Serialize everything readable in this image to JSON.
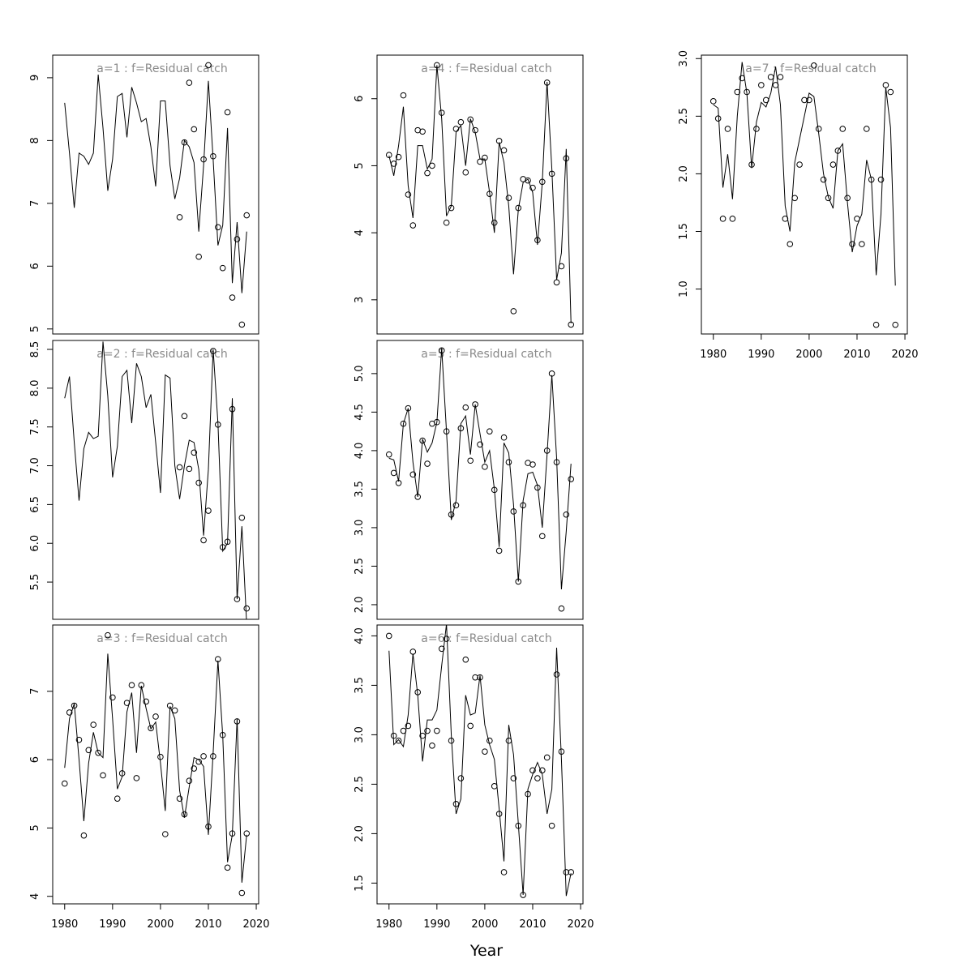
{
  "xlabel": "Year",
  "chart_data": [
    {
      "type": "line",
      "title": "a=1  :  f=Residual catch",
      "x": [
        1980,
        1981,
        1982,
        1983,
        1984,
        1985,
        1986,
        1987,
        1988,
        1989,
        1990,
        1991,
        1992,
        1993,
        1994,
        1995,
        1996,
        1997,
        1998,
        1999,
        2000,
        2001,
        2002,
        2003,
        2004,
        2005,
        2006,
        2007,
        2008,
        2009,
        2010,
        2011,
        2012,
        2013,
        2014,
        2015,
        2016,
        2017,
        2018
      ],
      "xlim": [
        1977.5,
        2020.5
      ],
      "ylim": [
        4.92,
        9.36
      ],
      "yticks": [
        5,
        6,
        7,
        8,
        9
      ],
      "series": [
        {
          "style": "line",
          "color": "#000000",
          "values": [
            8.6,
            7.8,
            6.93,
            7.8,
            7.75,
            7.62,
            7.8,
            9.05,
            8.2,
            7.2,
            7.7,
            8.7,
            8.75,
            8.05,
            8.85,
            8.6,
            8.3,
            8.35,
            7.9,
            7.27,
            8.63,
            8.63,
            7.6,
            7.07,
            7.4,
            8.0,
            7.9,
            7.65,
            6.55,
            7.6,
            8.95,
            7.7,
            6.33,
            6.65,
            8.2,
            5.73,
            6.7,
            5.57,
            6.55
          ]
        },
        {
          "style": "points",
          "color": "#000000",
          "values": [
            null,
            null,
            null,
            null,
            null,
            null,
            null,
            null,
            null,
            null,
            null,
            null,
            null,
            null,
            null,
            null,
            null,
            null,
            null,
            null,
            null,
            null,
            null,
            null,
            6.78,
            7.97,
            8.92,
            8.18,
            6.15,
            7.7,
            9.2,
            7.75,
            6.62,
            5.97,
            8.45,
            5.5,
            6.43,
            5.07,
            6.81
          ]
        }
      ]
    },
    {
      "type": "line",
      "title": "a=2  :  f=Residual catch",
      "x": [
        1980,
        1981,
        1982,
        1983,
        1984,
        1985,
        1986,
        1987,
        1988,
        1989,
        1990,
        1991,
        1992,
        1993,
        1994,
        1995,
        1996,
        1997,
        1998,
        1999,
        2000,
        2001,
        2002,
        2003,
        2004,
        2005,
        2006,
        2007,
        2008,
        2009,
        2010,
        2011,
        2012,
        2013,
        2014,
        2015,
        2016,
        2017,
        2018
      ],
      "xlim": [
        1977.5,
        2020.5
      ],
      "ylim": [
        5.02,
        8.615
      ],
      "yticks": [
        5.5,
        {
          "value": 6,
          "label": "6.0"
        },
        6.5,
        {
          "value": 7,
          "label": "7.0"
        },
        7.5,
        {
          "value": 8,
          "label": "8.0"
        },
        8.5
      ],
      "series": [
        {
          "style": "line",
          "color": "#000000",
          "values": [
            7.87,
            8.15,
            7.3,
            6.55,
            7.22,
            7.43,
            7.35,
            7.38,
            8.6,
            7.9,
            6.85,
            7.25,
            8.15,
            8.23,
            7.55,
            8.32,
            8.15,
            7.75,
            7.92,
            7.3,
            6.65,
            8.17,
            8.13,
            7.0,
            6.57,
            7.0,
            7.33,
            7.3,
            6.95,
            6.1,
            6.95,
            8.5,
            7.55,
            5.9,
            6.0,
            7.87,
            5.28,
            6.22,
            4.95
          ]
        },
        {
          "style": "points",
          "color": "#000000",
          "values": [
            null,
            null,
            null,
            null,
            null,
            null,
            null,
            null,
            null,
            null,
            null,
            null,
            null,
            null,
            null,
            null,
            null,
            null,
            null,
            null,
            null,
            null,
            null,
            null,
            6.98,
            7.64,
            6.96,
            7.17,
            6.78,
            6.04,
            6.42,
            8.48,
            7.53,
            5.95,
            6.02,
            7.73,
            5.28,
            6.33,
            5.16
          ]
        }
      ]
    },
    {
      "type": "line",
      "title": "a=3  :  f=Residual catch",
      "x": [
        1980,
        1981,
        1982,
        1983,
        1984,
        1985,
        1986,
        1987,
        1988,
        1989,
        1990,
        1991,
        1992,
        1993,
        1994,
        1995,
        1996,
        1997,
        1998,
        1999,
        2000,
        2001,
        2002,
        2003,
        2004,
        2005,
        2006,
        2007,
        2008,
        2009,
        2010,
        2011,
        2012,
        2013,
        2014,
        2015,
        2016,
        2017,
        2018
      ],
      "xlim": [
        1977.5,
        2020.5
      ],
      "ylim": [
        3.89,
        7.97
      ],
      "yticks": [
        4,
        5,
        6,
        7
      ],
      "xticks": [
        1980,
        1990,
        2000,
        2010,
        2020
      ],
      "series": [
        {
          "style": "line",
          "color": "#000000",
          "values": [
            5.88,
            6.6,
            6.82,
            6.0,
            5.1,
            5.95,
            6.4,
            6.1,
            6.03,
            7.55,
            6.6,
            5.57,
            5.75,
            6.7,
            6.98,
            6.1,
            7.08,
            6.75,
            6.45,
            6.55,
            5.95,
            5.25,
            6.78,
            6.6,
            5.55,
            5.15,
            5.6,
            6.03,
            6.0,
            5.9,
            4.9,
            6.1,
            7.45,
            6.35,
            4.5,
            4.9,
            6.6,
            4.2,
            4.9
          ]
        },
        {
          "style": "points",
          "color": "#000000",
          "values": [
            5.65,
            6.69,
            6.79,
            6.29,
            4.89,
            6.14,
            6.51,
            6.1,
            5.77,
            7.82,
            6.91,
            5.43,
            5.8,
            6.83,
            7.09,
            5.73,
            7.09,
            6.85,
            6.46,
            6.63,
            6.04,
            4.91,
            6.79,
            6.72,
            5.43,
            5.2,
            5.69,
            5.87,
            5.97,
            6.05,
            5.02,
            6.05,
            7.47,
            6.36,
            4.42,
            4.92,
            6.56,
            4.05,
            4.92
          ]
        }
      ]
    },
    {
      "type": "line",
      "title": "a=4  :  f=Residual catch",
      "x": [
        1980,
        1981,
        1982,
        1983,
        1984,
        1985,
        1986,
        1987,
        1988,
        1989,
        1990,
        1991,
        1992,
        1993,
        1994,
        1995,
        1996,
        1997,
        1998,
        1999,
        2000,
        2001,
        2002,
        2003,
        2004,
        2005,
        2006,
        2007,
        2008,
        2009,
        2010,
        2011,
        2012,
        2013,
        2014,
        2015,
        2016,
        2017,
        2018
      ],
      "xlim": [
        1977.5,
        2020.5
      ],
      "ylim": [
        2.49,
        6.65
      ],
      "yticks": [
        3,
        4,
        5,
        6
      ],
      "series": [
        {
          "style": "line",
          "color": "#000000",
          "values": [
            5.15,
            4.85,
            5.3,
            5.88,
            4.7,
            4.22,
            5.3,
            5.3,
            4.95,
            5.1,
            6.5,
            5.7,
            4.25,
            4.4,
            5.5,
            5.6,
            5.0,
            5.7,
            5.5,
            5.1,
            5.1,
            4.6,
            4.0,
            5.35,
            5.05,
            4.4,
            3.38,
            4.35,
            4.75,
            4.8,
            4.6,
            3.82,
            4.75,
            6.25,
            4.95,
            3.3,
            3.7,
            5.25,
            2.65
          ]
        },
        {
          "style": "points",
          "color": "#000000",
          "values": [
            5.16,
            5.03,
            5.13,
            6.05,
            4.57,
            4.11,
            5.53,
            5.51,
            4.89,
            5.0,
            6.5,
            5.79,
            4.15,
            4.37,
            5.55,
            5.65,
            4.9,
            5.69,
            5.53,
            5.06,
            5.12,
            4.58,
            4.15,
            5.37,
            5.23,
            4.52,
            2.83,
            4.37,
            4.8,
            4.78,
            4.67,
            3.89,
            4.76,
            6.24,
            4.88,
            3.26,
            3.5,
            5.11,
            2.63
          ]
        }
      ]
    },
    {
      "type": "line",
      "title": "a=5  :  f=Residual catch",
      "x": [
        1980,
        1981,
        1982,
        1983,
        1984,
        1985,
        1986,
        1987,
        1988,
        1989,
        1990,
        1991,
        1992,
        1993,
        1994,
        1995,
        1996,
        1997,
        1998,
        1999,
        2000,
        2001,
        2002,
        2003,
        2004,
        2005,
        2006,
        2007,
        2008,
        2009,
        2010,
        2011,
        2012,
        2013,
        2014,
        2015,
        2016,
        2017,
        2018
      ],
      "xlim": [
        1977.5,
        2020.5
      ],
      "ylim": [
        1.81,
        5.43
      ],
      "yticks": [
        {
          "value": 2,
          "label": "2.0"
        },
        2.5,
        {
          "value": 3,
          "label": "3.0"
        },
        3.5,
        {
          "value": 4,
          "label": "4.0"
        },
        4.5,
        {
          "value": 5,
          "label": "5.0"
        }
      ],
      "series": [
        {
          "style": "line",
          "color": "#000000",
          "values": [
            3.9,
            3.88,
            3.6,
            4.35,
            4.55,
            3.85,
            3.4,
            4.15,
            3.98,
            4.1,
            4.37,
            5.33,
            4.25,
            3.1,
            3.35,
            4.35,
            4.45,
            3.95,
            4.6,
            4.22,
            3.85,
            4.0,
            3.5,
            2.75,
            4.1,
            3.97,
            3.3,
            2.3,
            3.35,
            3.7,
            3.72,
            3.55,
            3.0,
            3.95,
            4.98,
            3.9,
            2.2,
            2.95,
            3.83
          ]
        },
        {
          "style": "points",
          "color": "#000000",
          "values": [
            3.95,
            3.71,
            3.58,
            4.35,
            4.55,
            3.69,
            3.4,
            4.13,
            3.83,
            4.35,
            4.37,
            5.3,
            4.25,
            3.17,
            3.29,
            4.29,
            4.56,
            3.87,
            4.6,
            4.08,
            3.79,
            4.25,
            3.49,
            2.7,
            4.17,
            3.85,
            3.21,
            2.3,
            3.29,
            3.84,
            3.82,
            3.52,
            2.89,
            4.0,
            5.0,
            3.85,
            1.95,
            3.17,
            3.63
          ]
        }
      ]
    },
    {
      "type": "line",
      "title": "a=6  :  f=Residual catch",
      "x": [
        1980,
        1981,
        1982,
        1983,
        1984,
        1985,
        1986,
        1987,
        1988,
        1989,
        1990,
        1991,
        1992,
        1993,
        1994,
        1995,
        1996,
        1997,
        1998,
        1999,
        2000,
        2001,
        2002,
        2003,
        2004,
        2005,
        2006,
        2007,
        2008,
        2009,
        2010,
        2011,
        2012,
        2013,
        2014,
        2015,
        2016,
        2017,
        2018
      ],
      "xlim": [
        1977.5,
        2020.5
      ],
      "ylim": [
        1.29,
        4.11
      ],
      "yticks": [
        1.5,
        {
          "value": 2,
          "label": "2.0"
        },
        2.5,
        {
          "value": 3,
          "label": "3.0"
        },
        3.5,
        {
          "value": 4,
          "label": "4.0"
        }
      ],
      "xticks": [
        1980,
        1990,
        2000,
        2010,
        2020
      ],
      "series": [
        {
          "style": "line",
          "color": "#000000",
          "values": [
            3.85,
            2.9,
            2.95,
            2.88,
            3.2,
            3.82,
            3.4,
            2.73,
            3.15,
            3.15,
            3.25,
            3.7,
            4.12,
            3.0,
            2.2,
            2.35,
            3.4,
            3.2,
            3.22,
            3.6,
            3.1,
            2.9,
            2.75,
            2.25,
            1.72,
            3.1,
            2.8,
            2.1,
            1.38,
            2.45,
            2.6,
            2.72,
            2.6,
            2.2,
            2.45,
            3.88,
            2.75,
            1.37,
            1.6
          ]
        },
        {
          "style": "points",
          "color": "#000000",
          "values": [
            4.0,
            2.99,
            2.94,
            3.04,
            3.09,
            3.84,
            3.43,
            2.99,
            3.04,
            2.89,
            3.04,
            3.87,
            3.97,
            2.94,
            2.3,
            2.56,
            3.76,
            3.09,
            3.58,
            3.58,
            2.83,
            2.94,
            2.48,
            2.2,
            1.61,
            2.94,
            2.56,
            2.08,
            1.38,
            2.4,
            2.64,
            2.56,
            2.64,
            2.77,
            2.08,
            3.61,
            2.83,
            1.61,
            1.61
          ]
        }
      ]
    },
    {
      "type": "line",
      "title": "a=7  :  f=Residual catch",
      "x": [
        1980,
        1981,
        1982,
        1983,
        1984,
        1985,
        1986,
        1987,
        1988,
        1989,
        1990,
        1991,
        1992,
        1993,
        1994,
        1995,
        1996,
        1997,
        1998,
        1999,
        2000,
        2001,
        2002,
        2003,
        2004,
        2005,
        2006,
        2007,
        2008,
        2009,
        2010,
        2011,
        2012,
        2013,
        2014,
        2015,
        2016,
        2017,
        2018
      ],
      "xlim": [
        1977.5,
        2020.5
      ],
      "ylim": [
        0.61,
        3.03
      ],
      "yticks": [
        {
          "value": 1,
          "label": "1.0"
        },
        1.5,
        {
          "value": 2,
          "label": "2.0"
        },
        2.5,
        {
          "value": 3,
          "label": "3.0"
        }
      ],
      "xticks": [
        1980,
        1990,
        2000,
        2010,
        2020
      ],
      "series": [
        {
          "style": "line",
          "color": "#000000",
          "values": [
            2.6,
            2.57,
            1.88,
            2.17,
            1.78,
            2.5,
            2.97,
            2.7,
            2.05,
            2.45,
            2.62,
            2.58,
            2.7,
            2.93,
            2.6,
            1.72,
            1.5,
            2.1,
            2.3,
            2.5,
            2.7,
            2.67,
            2.35,
            2.0,
            1.8,
            1.7,
            2.2,
            2.26,
            1.75,
            1.32,
            1.55,
            1.65,
            2.12,
            1.95,
            1.12,
            1.65,
            2.75,
            2.4,
            1.03
          ]
        },
        {
          "style": "points",
          "color": "#000000",
          "values": [
            2.63,
            2.48,
            1.61,
            2.39,
            1.61,
            2.71,
            2.83,
            2.71,
            2.08,
            2.39,
            2.77,
            2.64,
            2.84,
            2.77,
            2.84,
            1.61,
            1.39,
            1.79,
            2.08,
            2.64,
            2.64,
            2.94,
            2.39,
            1.95,
            1.79,
            2.08,
            2.2,
            2.39,
            1.79,
            1.39,
            1.61,
            1.39,
            2.39,
            1.95,
            0.69,
            1.95,
            2.77,
            2.71,
            0.69
          ]
        }
      ]
    }
  ]
}
